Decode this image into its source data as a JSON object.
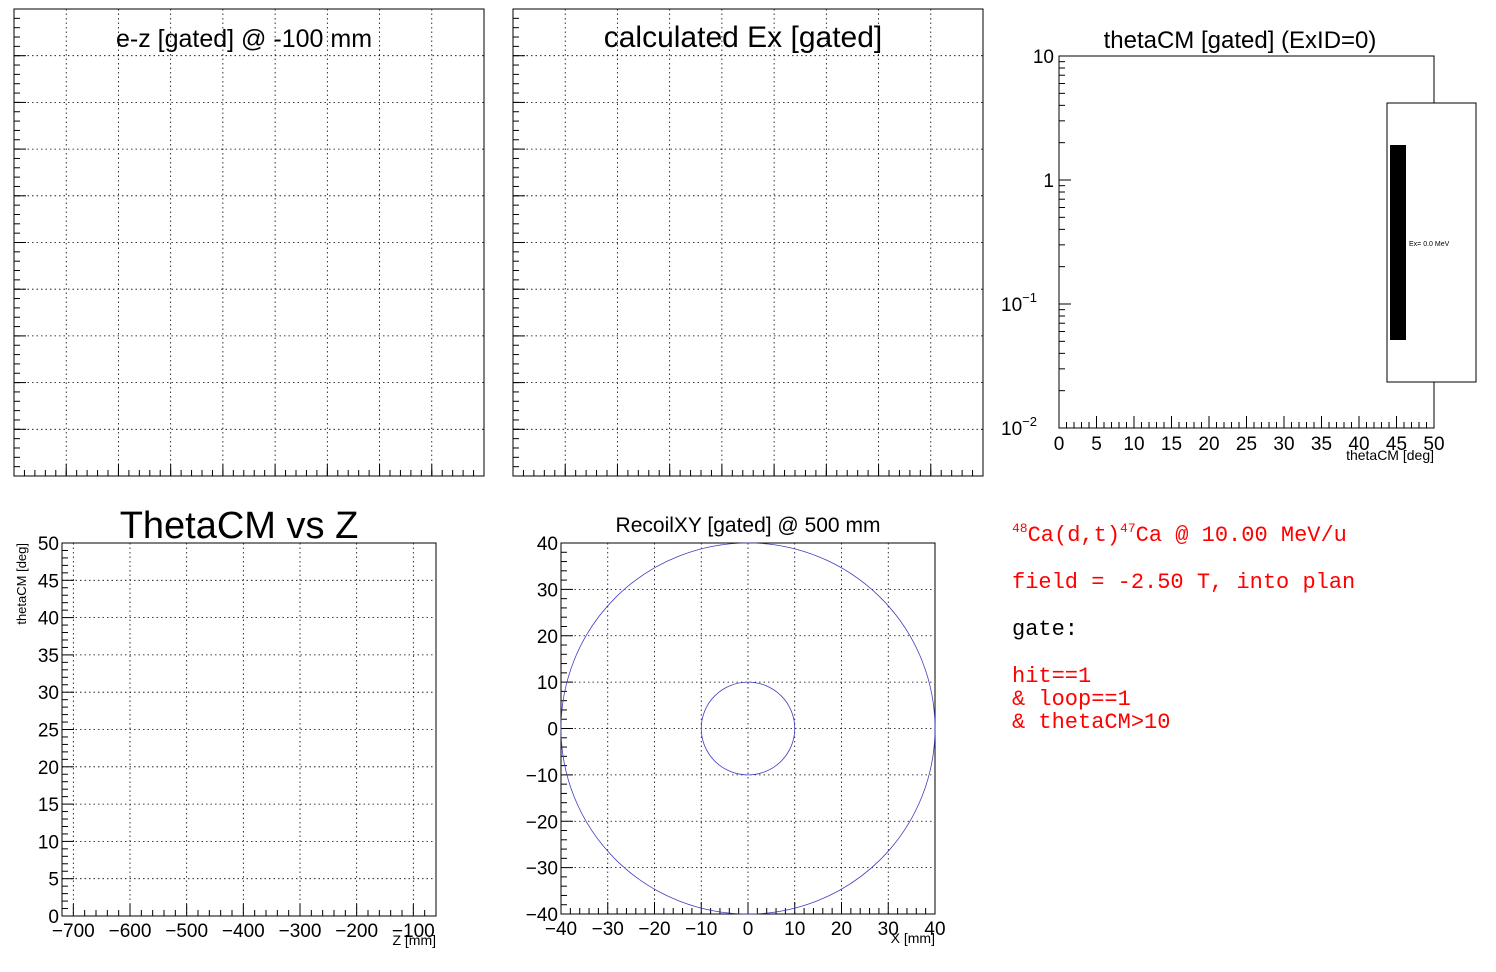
{
  "panels": {
    "ez": {
      "title": "e-z [gated] @  -100 mm"
    },
    "ex": {
      "title": "calculated Ex [gated]"
    },
    "thetacm": {
      "title": "thetaCM [gated] (ExID=0)",
      "legend": "Ex=  0.0 MeV"
    },
    "thetaz": {
      "title": "ThetaCM vs Z"
    },
    "recoil": {
      "title": "RecoilXY [gated] @  500 mm"
    }
  },
  "info": {
    "reaction": {
      "a1": "48",
      "t1": "Ca(d,t)",
      "a2": "47",
      "t2": "Ca @ 10.00 MeV/u"
    },
    "field": "field = -2.50 T, into plan",
    "gate_label": "gate:",
    "gate_lines": [
      "hit==1",
      "& loop==1",
      "& thetaCM>10"
    ]
  },
  "colors": {
    "accent": "#ff0000",
    "circle": "#3f3fbf"
  },
  "chart_data": [
    {
      "type": "scatter",
      "title": "e-z [gated] @  -100 mm",
      "points": []
    },
    {
      "type": "bar",
      "title": "calculated Ex [gated]",
      "values": []
    },
    {
      "type": "bar",
      "title": "thetaCM [gated] (ExID=0)",
      "xlabel": "thetaCM [deg]",
      "xlim": [
        0,
        50
      ],
      "ylim": [
        0.01,
        10
      ],
      "ylog": true,
      "x_ticks": [
        "0",
        "5",
        "10",
        "15",
        "20",
        "25",
        "30",
        "35",
        "40",
        "45",
        "50"
      ],
      "y_ticks": [
        {
          "base": "10",
          "exp": ""
        },
        {
          "base": "1",
          "exp": ""
        },
        {
          "base": "10",
          "exp": "−1"
        },
        {
          "base": "10",
          "exp": "−2"
        }
      ],
      "legend": [
        "Ex=  0.0 MeV"
      ],
      "values": []
    },
    {
      "type": "scatter",
      "title": "ThetaCM vs Z",
      "xlabel": "Z [mm]",
      "ylabel": "thetaCM [deg]",
      "xlim": [
        -720,
        -60
      ],
      "ylim": [
        0,
        50
      ],
      "x_ticks": [
        "−700",
        "−600",
        "−500",
        "−400",
        "−300",
        "−200",
        "−100"
      ],
      "y_ticks": [
        "0",
        "5",
        "10",
        "15",
        "20",
        "25",
        "30",
        "35",
        "40",
        "45",
        "50"
      ],
      "points": []
    },
    {
      "type": "line",
      "title": "RecoilXY [gated] @  500 mm",
      "xlabel": "X [mm]",
      "xlim": [
        -40,
        40
      ],
      "ylim": [
        -40,
        40
      ],
      "x_ticks": [
        "−40",
        "−30",
        "−20",
        "−10",
        "0",
        "10",
        "20",
        "30",
        "40"
      ],
      "y_ticks": [
        "40",
        "30",
        "20",
        "10",
        "0",
        "−10",
        "−20",
        "−30",
        "−40"
      ],
      "circles": [
        {
          "cx": 0,
          "cy": 0,
          "r": 40
        },
        {
          "cx": 0,
          "cy": 0,
          "r": 10
        }
      ]
    }
  ]
}
